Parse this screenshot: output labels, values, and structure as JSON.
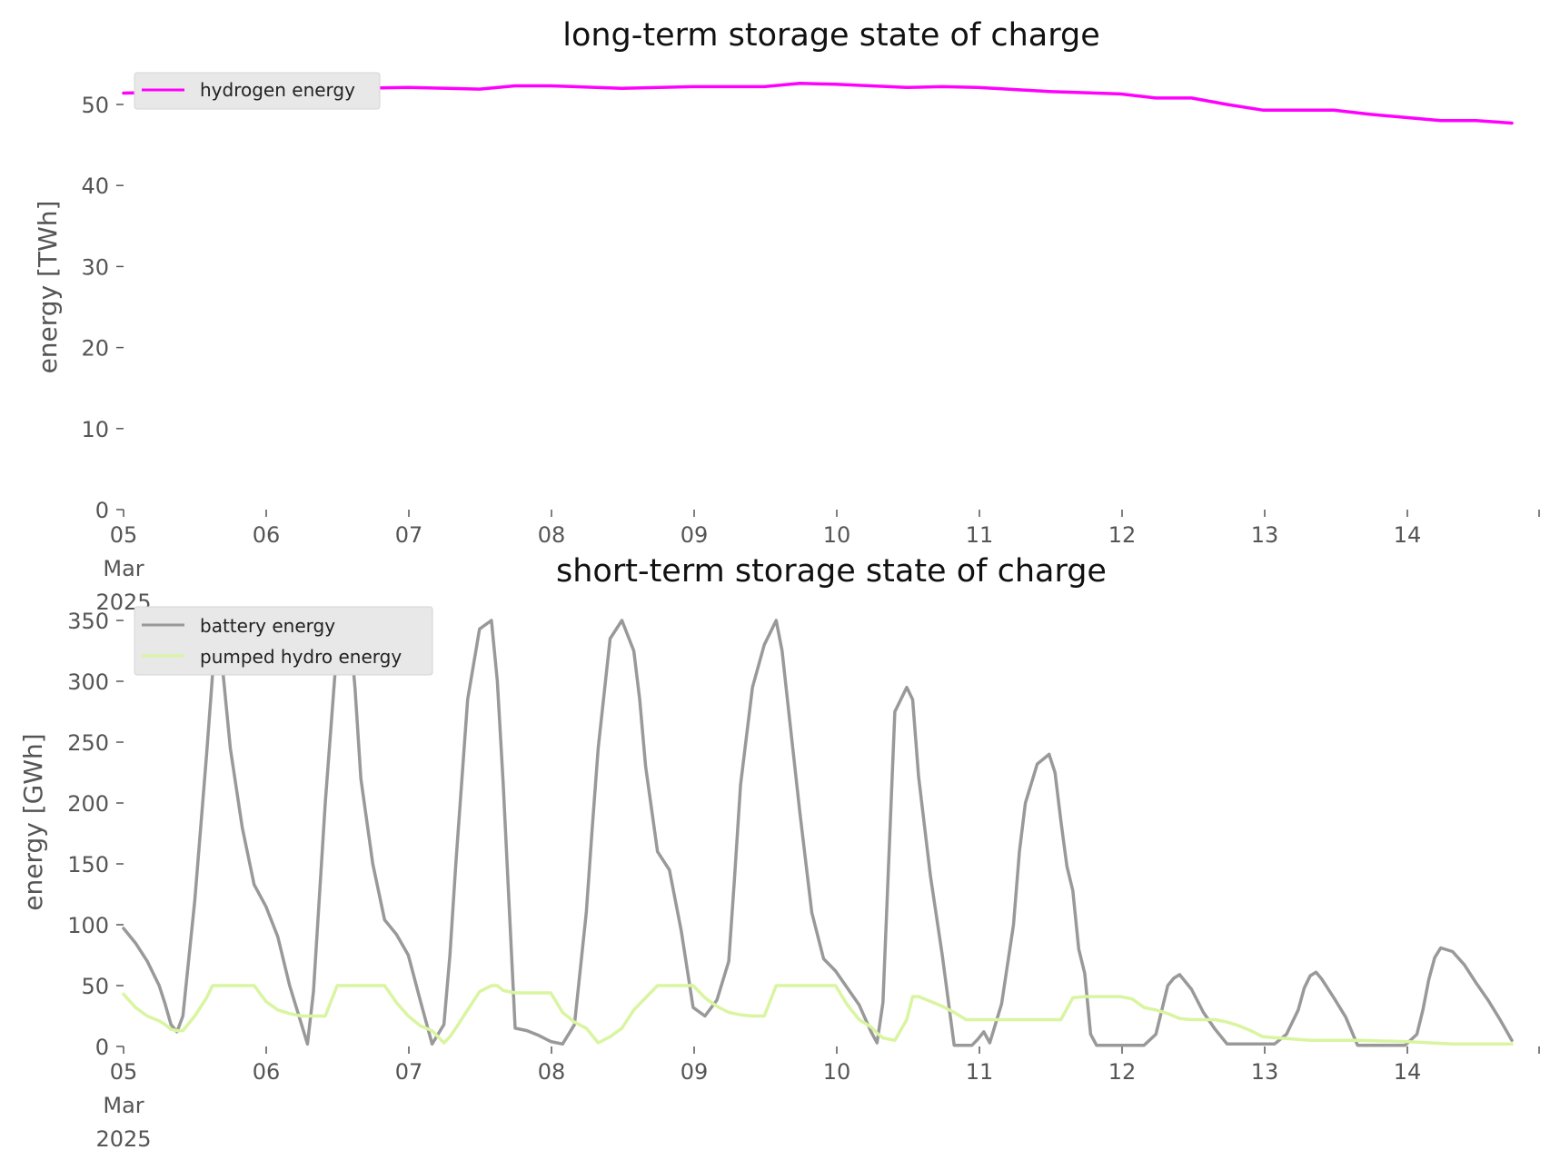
{
  "chart_data": [
    {
      "type": "line",
      "title": "long-term storage state of charge",
      "xlabel": "",
      "ylabel": "energy [TWh]",
      "xlim": [
        "2025-03-05 00:00",
        "2025-03-14 22:00"
      ],
      "ylim": [
        0,
        54
      ],
      "yticks": [
        0,
        10,
        20,
        30,
        40,
        50
      ],
      "xticks": [
        "05\nMar\n2025",
        "06",
        "07",
        "08",
        "09",
        "10",
        "11",
        "12",
        "13",
        "14"
      ],
      "grid": false,
      "legend": "top-left",
      "series": [
        {
          "name": "hydrogen energy",
          "color": "#ff00ff",
          "x_hours": [
            0,
            24,
            48,
            60,
            66,
            72,
            84,
            96,
            108,
            114,
            120,
            132,
            138,
            144,
            156,
            168,
            174,
            180,
            186,
            192,
            204,
            210,
            216,
            222,
            228,
            234
          ],
          "values": [
            51.4,
            51.8,
            52.1,
            51.9,
            52.3,
            52.3,
            52.0,
            52.2,
            52.2,
            52.6,
            52.5,
            52.1,
            52.2,
            52.1,
            51.6,
            51.3,
            50.8,
            50.8,
            50.0,
            49.3,
            49.3,
            48.8,
            48.4,
            48.0,
            48.0,
            47.7
          ]
        }
      ]
    },
    {
      "type": "line",
      "title": "short-term storage state of charge",
      "xlabel": "",
      "ylabel": "energy [GWh]",
      "xlim": [
        "2025-03-05 00:00",
        "2025-03-14 22:00"
      ],
      "ylim": [
        0,
        350
      ],
      "yticks": [
        0,
        50,
        100,
        150,
        200,
        250,
        300,
        350
      ],
      "xticks": [
        "05\nMar\n2025",
        "06",
        "07",
        "08",
        "09",
        "10",
        "11",
        "12",
        "13",
        "14"
      ],
      "grid": false,
      "legend": "top-left",
      "series": [
        {
          "name": "battery energy",
          "color": "#999999",
          "x_hours": [
            0,
            2,
            4,
            6,
            7,
            8,
            9,
            10,
            12,
            14,
            15,
            16,
            18,
            20,
            22,
            24,
            26,
            28,
            30,
            31,
            32,
            34,
            36,
            38,
            39,
            40,
            42,
            44,
            46,
            48,
            50,
            52,
            54,
            55,
            56,
            58,
            60,
            62,
            63,
            64,
            66,
            68,
            70,
            72,
            74,
            76,
            78,
            79,
            80,
            82,
            84,
            86,
            87,
            88,
            90,
            92,
            94,
            96,
            98,
            100,
            102,
            103,
            104,
            106,
            108,
            110,
            111,
            112,
            114,
            116,
            118,
            120,
            122,
            124,
            126,
            127,
            128,
            130,
            132,
            133,
            134,
            136,
            138,
            140,
            142,
            143,
            144,
            145,
            146,
            148,
            150,
            151,
            152,
            154,
            156,
            157,
            158,
            159,
            160,
            161,
            162,
            163,
            164,
            165,
            166,
            168,
            170,
            172,
            174,
            175,
            176,
            177,
            178,
            180,
            182,
            184,
            186,
            188,
            190,
            191,
            192,
            194,
            196,
            198,
            199,
            200,
            201,
            202,
            204,
            206,
            208,
            210,
            212,
            214,
            216,
            218,
            219,
            220,
            221,
            222,
            224,
            226,
            228,
            230,
            232,
            234
          ],
          "values": [
            97,
            85,
            70,
            50,
            35,
            18,
            12,
            25,
            120,
            240,
            305,
            345,
            245,
            180,
            133,
            115,
            90,
            50,
            18,
            2,
            45,
            200,
            330,
            350,
            295,
            220,
            150,
            104,
            92,
            75,
            38,
            2,
            18,
            75,
            150,
            285,
            343,
            350,
            300,
            215,
            15,
            13,
            9,
            4,
            2,
            18,
            110,
            180,
            245,
            335,
            350,
            325,
            285,
            230,
            160,
            145,
            95,
            32,
            25,
            38,
            70,
            140,
            215,
            295,
            330,
            350,
            325,
            280,
            192,
            110,
            72,
            62,
            48,
            34,
            12,
            3,
            36,
            275,
            295,
            285,
            222,
            140,
            75,
            1,
            1,
            1,
            6,
            12,
            3,
            35,
            100,
            160,
            200,
            232,
            240,
            225,
            185,
            148,
            128,
            80,
            60,
            10,
            1,
            1,
            1,
            1,
            1,
            1,
            10,
            30,
            50,
            56,
            59,
            47,
            28,
            14,
            2,
            2,
            2,
            2,
            2,
            2,
            10,
            30,
            48,
            58,
            61,
            55,
            40,
            24,
            1,
            1,
            1,
            1,
            1,
            10,
            30,
            55,
            73,
            81,
            78,
            67,
            52,
            38,
            22,
            5
          ]
        },
        {
          "name": "pumped hydro energy",
          "color": "#d9f5a0",
          "x_hours": [
            0,
            2,
            4,
            6,
            7,
            8,
            9,
            10,
            12,
            14,
            15,
            16,
            18,
            20,
            22,
            24,
            26,
            28,
            30,
            31,
            32,
            34,
            36,
            38,
            40,
            42,
            44,
            46,
            48,
            50,
            52,
            54,
            55,
            56,
            58,
            60,
            62,
            63,
            64,
            66,
            68,
            70,
            72,
            74,
            76,
            78,
            80,
            82,
            84,
            86,
            88,
            90,
            92,
            94,
            96,
            98,
            100,
            102,
            104,
            106,
            108,
            110,
            112,
            114,
            116,
            118,
            120,
            122,
            124,
            126,
            127,
            128,
            130,
            132,
            133,
            134,
            136,
            138,
            140,
            142,
            144,
            146,
            148,
            150,
            152,
            154,
            156,
            158,
            160,
            162,
            164,
            166,
            168,
            170,
            172,
            174,
            176,
            178,
            180,
            182,
            184,
            186,
            188,
            190,
            192,
            200,
            208,
            216,
            224,
            234
          ],
          "values": [
            43,
            32,
            25,
            21,
            18,
            14,
            13,
            13,
            25,
            40,
            50,
            50,
            50,
            50,
            50,
            37,
            30,
            27,
            25,
            25,
            25,
            25,
            50,
            50,
            50,
            50,
            50,
            36,
            25,
            17,
            13,
            3,
            8,
            15,
            30,
            45,
            50,
            50,
            46,
            44,
            44,
            44,
            44,
            28,
            20,
            15,
            3,
            8,
            15,
            30,
            40,
            50,
            50,
            50,
            50,
            40,
            33,
            28,
            26,
            25,
            25,
            50,
            50,
            50,
            50,
            50,
            50,
            34,
            22,
            16,
            11,
            7,
            5,
            22,
            41,
            41,
            37,
            33,
            28,
            22,
            22,
            22,
            22,
            22,
            22,
            22,
            22,
            22,
            40,
            41,
            41,
            41,
            41,
            39,
            32,
            30,
            27,
            23,
            22,
            22,
            22,
            20,
            17,
            13,
            8,
            5,
            5,
            4,
            2,
            2
          ]
        }
      ]
    }
  ]
}
